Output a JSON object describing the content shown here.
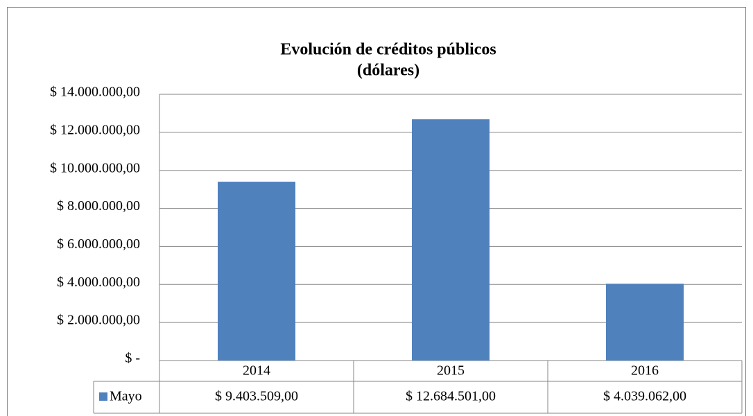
{
  "chart_data": {
    "type": "bar",
    "title": "Evolución de créditos públicos",
    "subtitle": "(dólares)",
    "categories": [
      "2014",
      "2015",
      "2016"
    ],
    "series": [
      {
        "name": "Mayo",
        "color": "#4f81bd",
        "values": [
          9403509,
          12684501,
          4039062
        ],
        "value_labels": [
          "$ 9.403.509,00",
          "$ 12.684.501,00",
          "$ 4.039.062,00"
        ]
      }
    ],
    "ylim": [
      0,
      14000000
    ],
    "yticks": [
      {
        "value": 0,
        "label": "$ -"
      },
      {
        "value": 2000000,
        "label": "$ 2.000.000,00"
      },
      {
        "value": 4000000,
        "label": "$ 4.000.000,00"
      },
      {
        "value": 6000000,
        "label": "$ 6.000.000,00"
      },
      {
        "value": 8000000,
        "label": "$ 8.000.000,00"
      },
      {
        "value": 10000000,
        "label": "$ 10.000.000,00"
      },
      {
        "value": 12000000,
        "label": "$ 12.000.000,00"
      },
      {
        "value": 14000000,
        "label": "$ 14.000.000,00"
      }
    ],
    "grid": true
  }
}
